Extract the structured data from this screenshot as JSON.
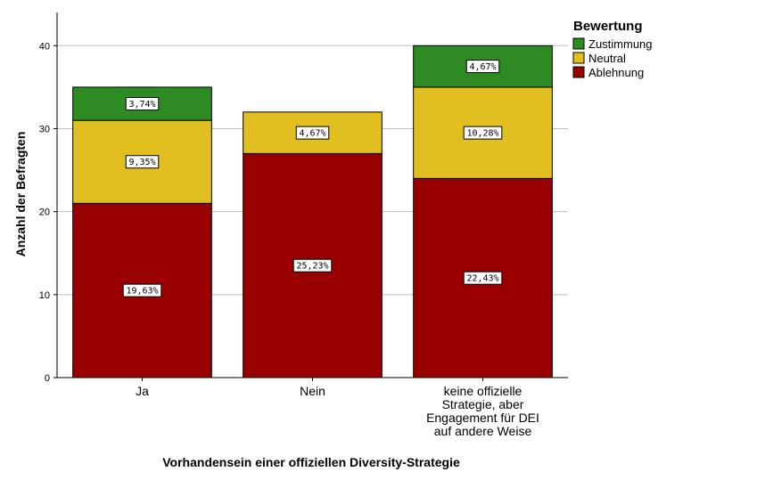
{
  "chart_data": {
    "type": "bar",
    "stacked": true,
    "categories": [
      "Ja",
      "Nein",
      "keine offizielle Strategie, aber Engagement für DEI auf andere Weise"
    ],
    "category_lines": [
      [
        "Ja"
      ],
      [
        "Nein"
      ],
      [
        "keine offizielle",
        "Strategie, aber",
        "Engagement für DEI",
        "auf andere Weise"
      ]
    ],
    "series": [
      {
        "name": "Ablehnung",
        "color": "#990000",
        "values": [
          21,
          27,
          24
        ],
        "labels": [
          "19,63%",
          "25,23%",
          "22,43%"
        ]
      },
      {
        "name": "Neutral",
        "color": "#e1bf20",
        "values": [
          10,
          5,
          11
        ],
        "labels": [
          "9,35%",
          "4,67%",
          "10,28%"
        ]
      },
      {
        "name": "Zustimmung",
        "color": "#2e8b24",
        "values": [
          4,
          0,
          5
        ],
        "labels": [
          "3,74%",
          "",
          "4,67%"
        ]
      }
    ],
    "legend_title": "Bewertung",
    "legend_order": [
      "Zustimmung",
      "Neutral",
      "Ablehnung"
    ],
    "legend_position": "top-right",
    "xlabel": "Vorhandensein einer offiziellen Diversity-Strategie",
    "ylabel": "Anzahl der Befragten",
    "ylim": [
      0,
      44
    ],
    "yticks": [
      0,
      10,
      20,
      30,
      40
    ],
    "grid": true
  }
}
